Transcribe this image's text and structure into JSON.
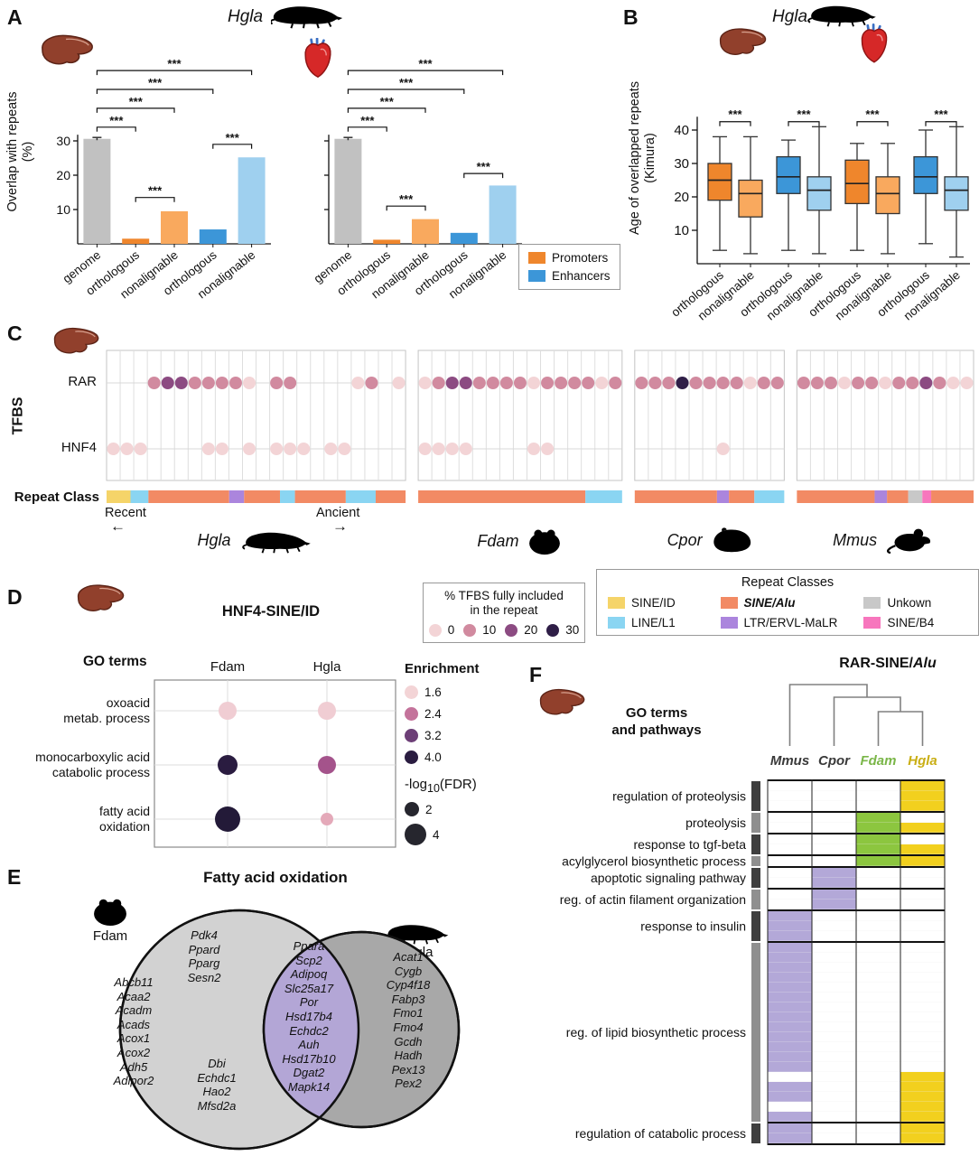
{
  "colors": {
    "genome_bar": "#c1c1c1",
    "promoter": "#ef862c",
    "promoter_light": "#f9a95e",
    "enhancer": "#3c96d8",
    "enhancer_light": "#9fd0ef"
  },
  "panel_a": {
    "label": "A",
    "title": "Hgla",
    "ylabel_line1": "Overlap with repeats",
    "ylabel_line2": "(%)",
    "yticks": [
      10,
      20,
      30
    ],
    "categories": [
      "genome",
      "orthologous",
      "nonalignable",
      "orthologous",
      "nonalignable"
    ],
    "bar_color_keys": [
      "genome_bar",
      "promoter",
      "promoter_light",
      "enhancer",
      "enhancer_light"
    ],
    "charts": [
      {
        "tissue": "liver",
        "values": [
          30.6,
          1.5,
          9.5,
          4.2,
          25.2
        ],
        "err": [
          0.4,
          0,
          0,
          0,
          0
        ],
        "brackets": [
          {
            "a": 0,
            "b": 1,
            "y": 34,
            "label": "***"
          },
          {
            "a": 1,
            "b": 2,
            "y": 13.5,
            "label": "***"
          },
          {
            "a": 0,
            "b": 2,
            "y": 39.5,
            "label": "***"
          },
          {
            "a": 0,
            "b": 3,
            "y": 45,
            "label": "***"
          },
          {
            "a": 0,
            "b": 4,
            "y": 50.5,
            "label": "***"
          },
          {
            "a": 3,
            "b": 4,
            "y": 29,
            "label": "***"
          }
        ]
      },
      {
        "tissue": "heart",
        "values": [
          30.6,
          1.2,
          7.2,
          3.2,
          17.0
        ],
        "err": [
          0.4,
          0,
          0,
          0,
          0
        ],
        "brackets": [
          {
            "a": 0,
            "b": 1,
            "y": 34,
            "label": "***"
          },
          {
            "a": 1,
            "b": 2,
            "y": 11,
            "label": "***"
          },
          {
            "a": 0,
            "b": 2,
            "y": 39.5,
            "label": "***"
          },
          {
            "a": 0,
            "b": 3,
            "y": 45,
            "label": "***"
          },
          {
            "a": 0,
            "b": 4,
            "y": 50.5,
            "label": "***"
          },
          {
            "a": 3,
            "b": 4,
            "y": 20.5,
            "label": "***"
          }
        ]
      }
    ],
    "legend": [
      {
        "label": "Promoters",
        "color": "#ef862c"
      },
      {
        "label": "Enhancers",
        "color": "#3c96d8"
      }
    ]
  },
  "panel_b": {
    "label": "B",
    "title": "Hgla",
    "ylabel_line1": "Age of overlapped repeats",
    "ylabel_line2": "(Kimura)",
    "yticks": [
      10,
      20,
      30,
      40
    ],
    "sig_label": "***",
    "boxes": [
      {
        "label": "orthologous",
        "colorKey": "promoter",
        "lo": 4,
        "q1": 19,
        "med": 25,
        "q3": 30,
        "hi": 38
      },
      {
        "label": "nonalignable",
        "colorKey": "promoter_light",
        "lo": 3,
        "q1": 14,
        "med": 21,
        "q3": 25,
        "hi": 38
      },
      {
        "label": "orthologous",
        "colorKey": "enhancer",
        "lo": 4,
        "q1": 21,
        "med": 26,
        "q3": 32,
        "hi": 37
      },
      {
        "label": "nonalignable",
        "colorKey": "enhancer_light",
        "lo": 3,
        "q1": 16,
        "med": 22,
        "q3": 26,
        "hi": 41
      },
      {
        "label": "orthologous",
        "colorKey": "promoter",
        "lo": 4,
        "q1": 18,
        "med": 24,
        "q3": 31,
        "hi": 36
      },
      {
        "label": "nonalignable",
        "colorKey": "promoter_light",
        "lo": 3,
        "q1": 15,
        "med": 21,
        "q3": 26,
        "hi": 36
      },
      {
        "label": "orthologous",
        "colorKey": "enhancer",
        "lo": 6,
        "q1": 21,
        "med": 26,
        "q3": 32,
        "hi": 40
      },
      {
        "label": "nonalignable",
        "colorKey": "enhancer_light",
        "lo": 2,
        "q1": 16,
        "med": 22,
        "q3": 26,
        "hi": 41
      }
    ]
  },
  "panel_c": {
    "label": "C",
    "tfbs_axis_label": "TFBS",
    "row_rar": "RAR",
    "row_hnf4": "HNF4",
    "repeat_class_label": "Repeat Class",
    "recent_label": "Recent",
    "recent_arrow": "←",
    "ancient_label": "Ancient",
    "ancient_arrow": "→",
    "level_colors": [
      "#f3d4d6",
      "#d18a9f",
      "#8c4b82",
      "#2f1e47"
    ],
    "groups": [
      {
        "species": "Hgla",
        "icon": "molerat",
        "n": 22,
        "rar": [
          [
            3,
            1
          ],
          [
            4,
            2
          ],
          [
            5,
            2
          ],
          [
            6,
            1
          ],
          [
            7,
            1
          ],
          [
            8,
            1
          ],
          [
            9,
            1
          ],
          [
            10,
            0
          ],
          [
            12,
            1
          ],
          [
            13,
            1
          ],
          [
            18,
            0
          ],
          [
            19,
            1
          ],
          [
            21,
            0
          ]
        ],
        "hnf4": [
          [
            0,
            0
          ],
          [
            1,
            0
          ],
          [
            2,
            0
          ],
          [
            7,
            0
          ],
          [
            8,
            0
          ],
          [
            10,
            0
          ],
          [
            12,
            0
          ],
          [
            13,
            0
          ],
          [
            14,
            0
          ],
          [
            16,
            0
          ],
          [
            17,
            0
          ]
        ],
        "repeat_segments": [
          [
            "SINE/ID",
            0.08
          ],
          [
            "LINE/L1",
            0.06
          ],
          [
            "SINE/Alu",
            0.27
          ],
          [
            "LTR/ERVL-MaLR",
            0.05
          ],
          [
            "SINE/Alu",
            0.12
          ],
          [
            "LINE/L1",
            0.05
          ],
          [
            "SINE/Alu",
            0.17
          ],
          [
            "LINE/L1",
            0.1
          ],
          [
            "SINE/Alu",
            0.1
          ]
        ]
      },
      {
        "species": "Fdam",
        "icon": "hamster",
        "n": 15,
        "rar": [
          [
            0,
            0
          ],
          [
            1,
            1
          ],
          [
            2,
            2
          ],
          [
            3,
            2
          ],
          [
            4,
            1
          ],
          [
            5,
            1
          ],
          [
            6,
            1
          ],
          [
            7,
            1
          ],
          [
            8,
            0
          ],
          [
            9,
            1
          ],
          [
            10,
            1
          ],
          [
            11,
            1
          ],
          [
            12,
            1
          ],
          [
            13,
            0
          ],
          [
            14,
            1
          ]
        ],
        "hnf4": [
          [
            0,
            0
          ],
          [
            1,
            0
          ],
          [
            2,
            0
          ],
          [
            3,
            0
          ],
          [
            8,
            0
          ],
          [
            9,
            0
          ]
        ],
        "repeat_segments": [
          [
            "SINE/Alu",
            0.82
          ],
          [
            "LINE/L1",
            0.18
          ]
        ]
      },
      {
        "species": "Cpor",
        "icon": "guineapig",
        "n": 11,
        "rar": [
          [
            0,
            1
          ],
          [
            1,
            1
          ],
          [
            2,
            1
          ],
          [
            3,
            3
          ],
          [
            4,
            1
          ],
          [
            5,
            1
          ],
          [
            6,
            1
          ],
          [
            7,
            1
          ],
          [
            8,
            0
          ],
          [
            9,
            1
          ],
          [
            10,
            1
          ]
        ],
        "hnf4": [
          [
            6,
            0
          ]
        ],
        "repeat_segments": [
          [
            "SINE/Alu",
            0.55
          ],
          [
            "LTR/ERVL-MaLR",
            0.08
          ],
          [
            "SINE/Alu",
            0.17
          ],
          [
            "LINE/L1",
            0.2
          ]
        ]
      },
      {
        "species": "Mmus",
        "icon": "mouse",
        "n": 13,
        "rar": [
          [
            0,
            1
          ],
          [
            1,
            1
          ],
          [
            2,
            1
          ],
          [
            3,
            0
          ],
          [
            4,
            1
          ],
          [
            5,
            1
          ],
          [
            6,
            0
          ],
          [
            7,
            1
          ],
          [
            8,
            1
          ],
          [
            9,
            2
          ],
          [
            10,
            1
          ],
          [
            11,
            0
          ],
          [
            12,
            0
          ]
        ],
        "hnf4": [],
        "repeat_segments": [
          [
            "SINE/Alu",
            0.44
          ],
          [
            "LTR/ERVL-MaLR",
            0.07
          ],
          [
            "SINE/Alu",
            0.12
          ],
          [
            "Unkown",
            0.08
          ],
          [
            "SINE/B4",
            0.05
          ],
          [
            "SINE/Alu",
            0.24
          ]
        ]
      }
    ]
  },
  "tfbs_legend": {
    "title_line1": "% TFBS fully included",
    "title_line2": "in the repeat",
    "items": [
      {
        "value": "0",
        "color": "#f3d4d6"
      },
      {
        "value": "10",
        "color": "#d18a9f"
      },
      {
        "value": "20",
        "color": "#8c4b82"
      },
      {
        "value": "30",
        "color": "#2f1e47"
      }
    ]
  },
  "repeat_legend": {
    "title": "Repeat Classes",
    "items": [
      {
        "label": "SINE/ID",
        "color": "#f5d469"
      },
      {
        "label": "SINE/Alu",
        "color": "#f28a64"
      },
      {
        "label": "Unkown",
        "color": "#c8c8c8"
      },
      {
        "label": "LINE/L1",
        "color": "#8ad5f2"
      },
      {
        "label": "LTR/ERVL-MaLR",
        "color": "#ab85dd"
      },
      {
        "label": "SINE/B4",
        "color": "#f776bd"
      }
    ]
  },
  "panel_d": {
    "label": "D",
    "title": "HNF4-SINE/ID",
    "row_header": "GO terms",
    "columns": [
      "Fdam",
      "Hgla"
    ],
    "rows": [
      {
        "label_line1": "oxoacid",
        "label_line2": "metab. process",
        "dots": [
          {
            "color": "#f0cdd3",
            "r": 10
          },
          {
            "color": "#f0cdd3",
            "r": 10
          }
        ]
      },
      {
        "label_line1": "monocarboxylic acid",
        "label_line2": "catabolic process",
        "dots": [
          {
            "color": "#2a1c40",
            "r": 11
          },
          {
            "color": "#a4538b",
            "r": 10
          }
        ]
      },
      {
        "label_line1": "fatty acid",
        "label_line2": "oxidation",
        "dots": [
          {
            "color": "#231a38",
            "r": 14
          },
          {
            "color": "#e4a9b9",
            "r": 7
          }
        ]
      }
    ],
    "enrichment_legend": {
      "title": "Enrichment",
      "items": [
        {
          "value": "1.6",
          "color": "#f3d4d6"
        },
        {
          "value": "2.4",
          "color": "#c4739b"
        },
        {
          "value": "3.2",
          "color": "#6d3f77"
        },
        {
          "value": "4.0",
          "color": "#2a1c40"
        }
      ]
    },
    "fdr_legend": {
      "title_prefix": "-log",
      "title_sub": "10",
      "title_suffix": "(FDR)",
      "items": [
        {
          "value": "2",
          "r": 8
        },
        {
          "value": "4",
          "r": 12
        }
      ]
    }
  },
  "panel_e": {
    "label": "E",
    "title": "Fatty acid oxidation",
    "left_species": "Fdam",
    "right_species": "Hgla",
    "left_top": [
      "Pdk4",
      "Ppard",
      "Pparg",
      "Sesn2"
    ],
    "left_col": [
      "Abcb11",
      "Acaa2",
      "Acadm",
      "Acads",
      "Acox1",
      "Acox2",
      "Adh5",
      "Adipor2"
    ],
    "left_bottom": [
      "Dbi",
      "Echdc1",
      "Hao2",
      "Mfsd2a"
    ],
    "shared": [
      "Ppara",
      "Scp2",
      "Adipoq",
      "Slc25a17",
      "Por",
      "Hsd17b4",
      "Echdc2",
      "Auh",
      "Hsd17b10",
      "Dgat2",
      "Mapk14"
    ],
    "right_only": [
      "Acat1",
      "Cygb",
      "Cyp4f18",
      "Fabp3",
      "Fmo1",
      "Fmo4",
      "Gcdh",
      "Hadh",
      "Pex13",
      "Pex2"
    ],
    "venn_colors": {
      "left": "#d2d2d2",
      "right": "#a8a8a8",
      "overlap": "#b3a6d6"
    }
  },
  "panel_f": {
    "label": "F",
    "title_main": "RAR-SINE/",
    "title_italic": "Alu",
    "header_line1": "GO terms",
    "header_line2": "and pathways",
    "columns": [
      {
        "label": "Mmus",
        "labelColor": "#3a3a3a",
        "cellColor": "#b3a8d8"
      },
      {
        "label": "Cpor",
        "labelColor": "#3a3a3a",
        "cellColor": "#b3a8d8"
      },
      {
        "label": "Fdam",
        "labelColor": "#7ab648",
        "cellColor": "#8cc63f"
      },
      {
        "label": "Hgla",
        "labelColor": "#c9ae14",
        "cellColor": "#f2d01e"
      }
    ],
    "sidebar_colors": [
      "#3f3f3f",
      "#8f8f8f"
    ],
    "groups": [
      {
        "label": "regulation of proteolysis",
        "rows": [
          [
            0,
            0,
            0,
            1
          ],
          [
            0,
            0,
            0,
            1
          ],
          [
            0,
            0,
            0,
            1
          ]
        ]
      },
      {
        "label": "proteolysis",
        "rows": [
          [
            0,
            0,
            1,
            0
          ],
          [
            0,
            0,
            1,
            1
          ]
        ]
      },
      {
        "label": "response to tgf-beta",
        "rows": [
          [
            0,
            0,
            1,
            0
          ],
          [
            0,
            0,
            1,
            1
          ]
        ]
      },
      {
        "label": "acylglycerol biosynthetic process",
        "rows": [
          [
            0,
            0,
            1,
            1
          ]
        ]
      },
      {
        "label": "apoptotic signaling pathway",
        "rows": [
          [
            0,
            1,
            0,
            0
          ],
          [
            0,
            1,
            0,
            0
          ]
        ]
      },
      {
        "label": "reg. of actin filament organization",
        "rows": [
          [
            0,
            1,
            0,
            0
          ],
          [
            0,
            1,
            0,
            0
          ]
        ]
      },
      {
        "label": "response to insulin",
        "rows": [
          [
            1,
            0,
            0,
            0
          ],
          [
            1,
            0,
            0,
            0
          ],
          [
            1,
            0,
            0,
            0
          ]
        ]
      },
      {
        "label": "reg. of lipid biosynthetic process",
        "rows": [
          [
            1,
            0,
            0,
            0
          ],
          [
            1,
            0,
            0,
            0
          ],
          [
            1,
            0,
            0,
            0
          ],
          [
            1,
            0,
            0,
            0
          ],
          [
            1,
            0,
            0,
            0
          ],
          [
            1,
            0,
            0,
            0
          ],
          [
            1,
            0,
            0,
            0
          ],
          [
            1,
            0,
            0,
            0
          ],
          [
            1,
            0,
            0,
            0
          ],
          [
            1,
            0,
            0,
            0
          ],
          [
            1,
            0,
            0,
            0
          ],
          [
            1,
            0,
            0,
            0
          ],
          [
            1,
            0,
            0,
            0
          ],
          [
            0,
            0,
            0,
            1
          ],
          [
            1,
            0,
            0,
            1
          ],
          [
            1,
            0,
            0,
            1
          ],
          [
            0,
            0,
            0,
            1
          ],
          [
            1,
            0,
            0,
            1
          ]
        ]
      },
      {
        "label": "regulation of catabolic process",
        "rows": [
          [
            1,
            0,
            0,
            1
          ],
          [
            1,
            0,
            0,
            1
          ]
        ]
      }
    ]
  }
}
